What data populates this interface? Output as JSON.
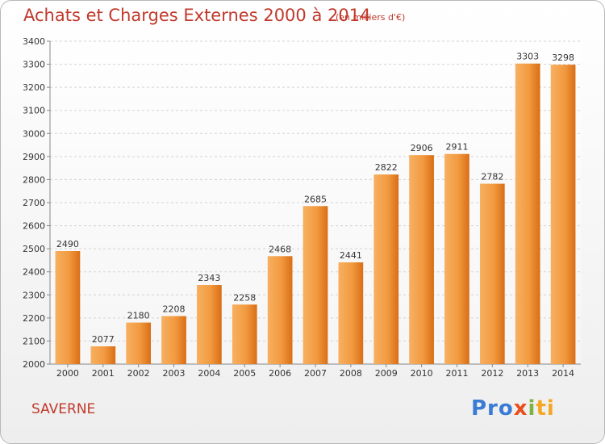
{
  "header": {
    "title": "Achats et Charges Externes 2000 à 2014",
    "subtitle": "(en milliers d'€)"
  },
  "footer": {
    "place": "SAVERNE",
    "logo": {
      "p1": "Pro",
      "p2": "x",
      "p3": "i",
      "p4": "ti"
    }
  },
  "colors": {
    "bar": "#f0862a",
    "bar_light": "#f7aa58",
    "title": "#c0392b"
  },
  "chart_data": {
    "type": "bar",
    "title": "Achats et Charges Externes 2000 à 2014",
    "subtitle": "(en milliers d'€)",
    "categories": [
      "2000",
      "2001",
      "2002",
      "2003",
      "2004",
      "2005",
      "2006",
      "2007",
      "2008",
      "2009",
      "2010",
      "2011",
      "2012",
      "2013",
      "2014"
    ],
    "values": [
      2490,
      2077,
      2180,
      2208,
      2343,
      2258,
      2468,
      2685,
      2441,
      2822,
      2906,
      2911,
      2782,
      3303,
      3298
    ],
    "yticks": [
      "2000",
      "2100",
      "2200",
      "2300",
      "2400",
      "2500",
      "2600",
      "2700",
      "2800",
      "2900",
      "3000",
      "3100",
      "3200",
      "3300",
      "3400"
    ],
    "ylim": [
      2000,
      3400
    ],
    "grid": true,
    "data_labels": true
  }
}
